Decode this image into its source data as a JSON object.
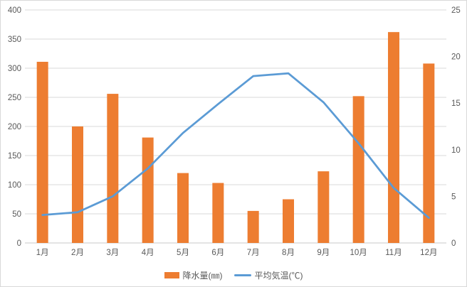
{
  "chart_data": {
    "type": "combo-bar-line",
    "title": "",
    "categories": [
      "1月",
      "2月",
      "3月",
      "4月",
      "5月",
      "6月",
      "7月",
      "8月",
      "9月",
      "10月",
      "11月",
      "12月"
    ],
    "series": [
      {
        "name": "降水量(㎜)",
        "type": "bar",
        "axis": "left",
        "color": "#ED7D31",
        "values": [
          311,
          200,
          256,
          181,
          120,
          103,
          55,
          75,
          123,
          252,
          362,
          308
        ]
      },
      {
        "name": "平均気温(℃)",
        "type": "line",
        "axis": "right",
        "color": "#5B9BD5",
        "values": [
          3.0,
          3.3,
          5.0,
          8.0,
          11.8,
          14.9,
          17.9,
          18.2,
          15.1,
          10.7,
          5.9,
          2.7
        ]
      }
    ],
    "left_axis": {
      "min": 0,
      "max": 400,
      "step": 50,
      "tick_labels": [
        "0",
        "50",
        "100",
        "150",
        "200",
        "250",
        "300",
        "350",
        "400"
      ]
    },
    "right_axis": {
      "min": 0,
      "max": 25,
      "step": 5,
      "tick_labels": [
        "0",
        "5",
        "10",
        "15",
        "20",
        "25"
      ]
    },
    "grid": true,
    "legend_position": "bottom",
    "colors": {
      "grid": "#d9d9d9",
      "axis": "#c8c8c8",
      "tick_text": "#595959",
      "background": "#ffffff"
    }
  }
}
